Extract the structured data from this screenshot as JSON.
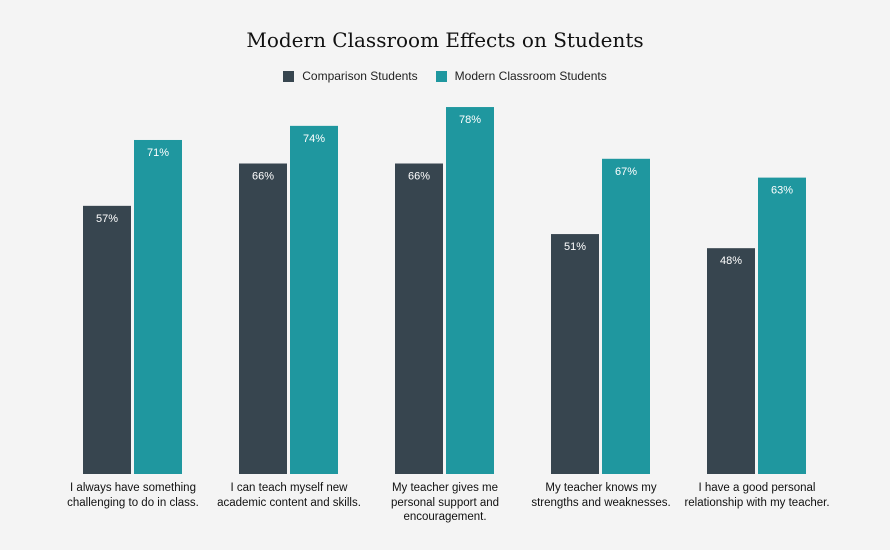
{
  "chart_data": {
    "type": "bar",
    "title": "Modern Classroom Effects on Students",
    "categories": [
      "I always have something challenging to do in class.",
      "I can teach myself new academic content and skills.",
      "My teacher gives me personal support and encouragement.",
      "My teacher knows my strengths and weaknesses.",
      "I have a good personal relationship with my teacher."
    ],
    "series": [
      {
        "name": "Comparison Students",
        "color": "#37454f",
        "values": [
          57,
          66,
          66,
          51,
          48
        ]
      },
      {
        "name": "Modern Classroom Students",
        "color": "#1f979f",
        "values": [
          71,
          74,
          78,
          67,
          63
        ]
      }
    ],
    "value_suffix": "%",
    "ylim": [
      0,
      88
    ],
    "xlabel": "",
    "ylabel": "",
    "legend": "top-center",
    "grid": false
  }
}
